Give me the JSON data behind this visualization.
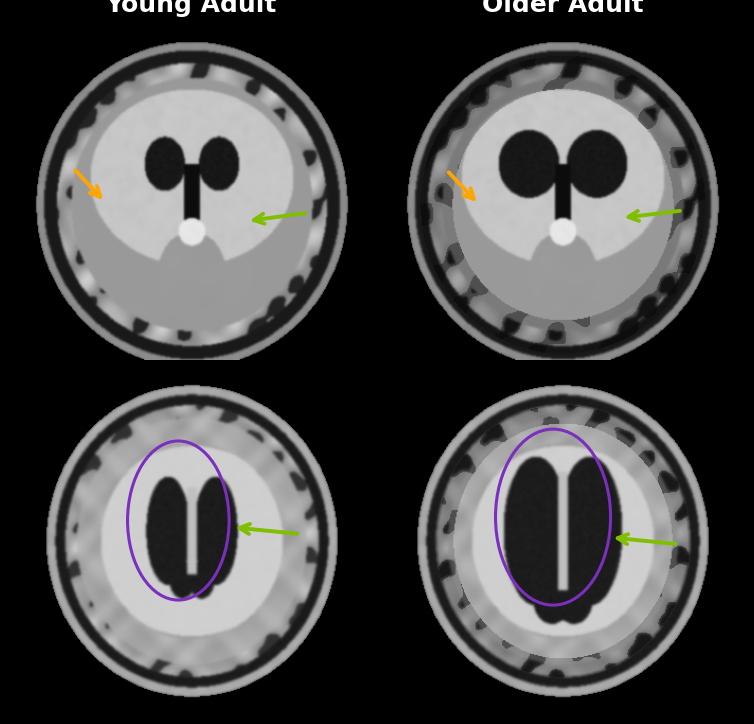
{
  "title_left": "Young Adult",
  "title_right": "Older Adult",
  "title_fontsize": 18,
  "title_color": "white",
  "title_fontweight": "bold",
  "background_color": "black",
  "orange_arrow_color": "#FFA500",
  "green_arrow_color": "#7FBF00",
  "ellipse_color": "#7B2FBE",
  "ellipse_linewidth": 2.2,
  "figsize": [
    7.54,
    7.24
  ],
  "dpi": 100
}
